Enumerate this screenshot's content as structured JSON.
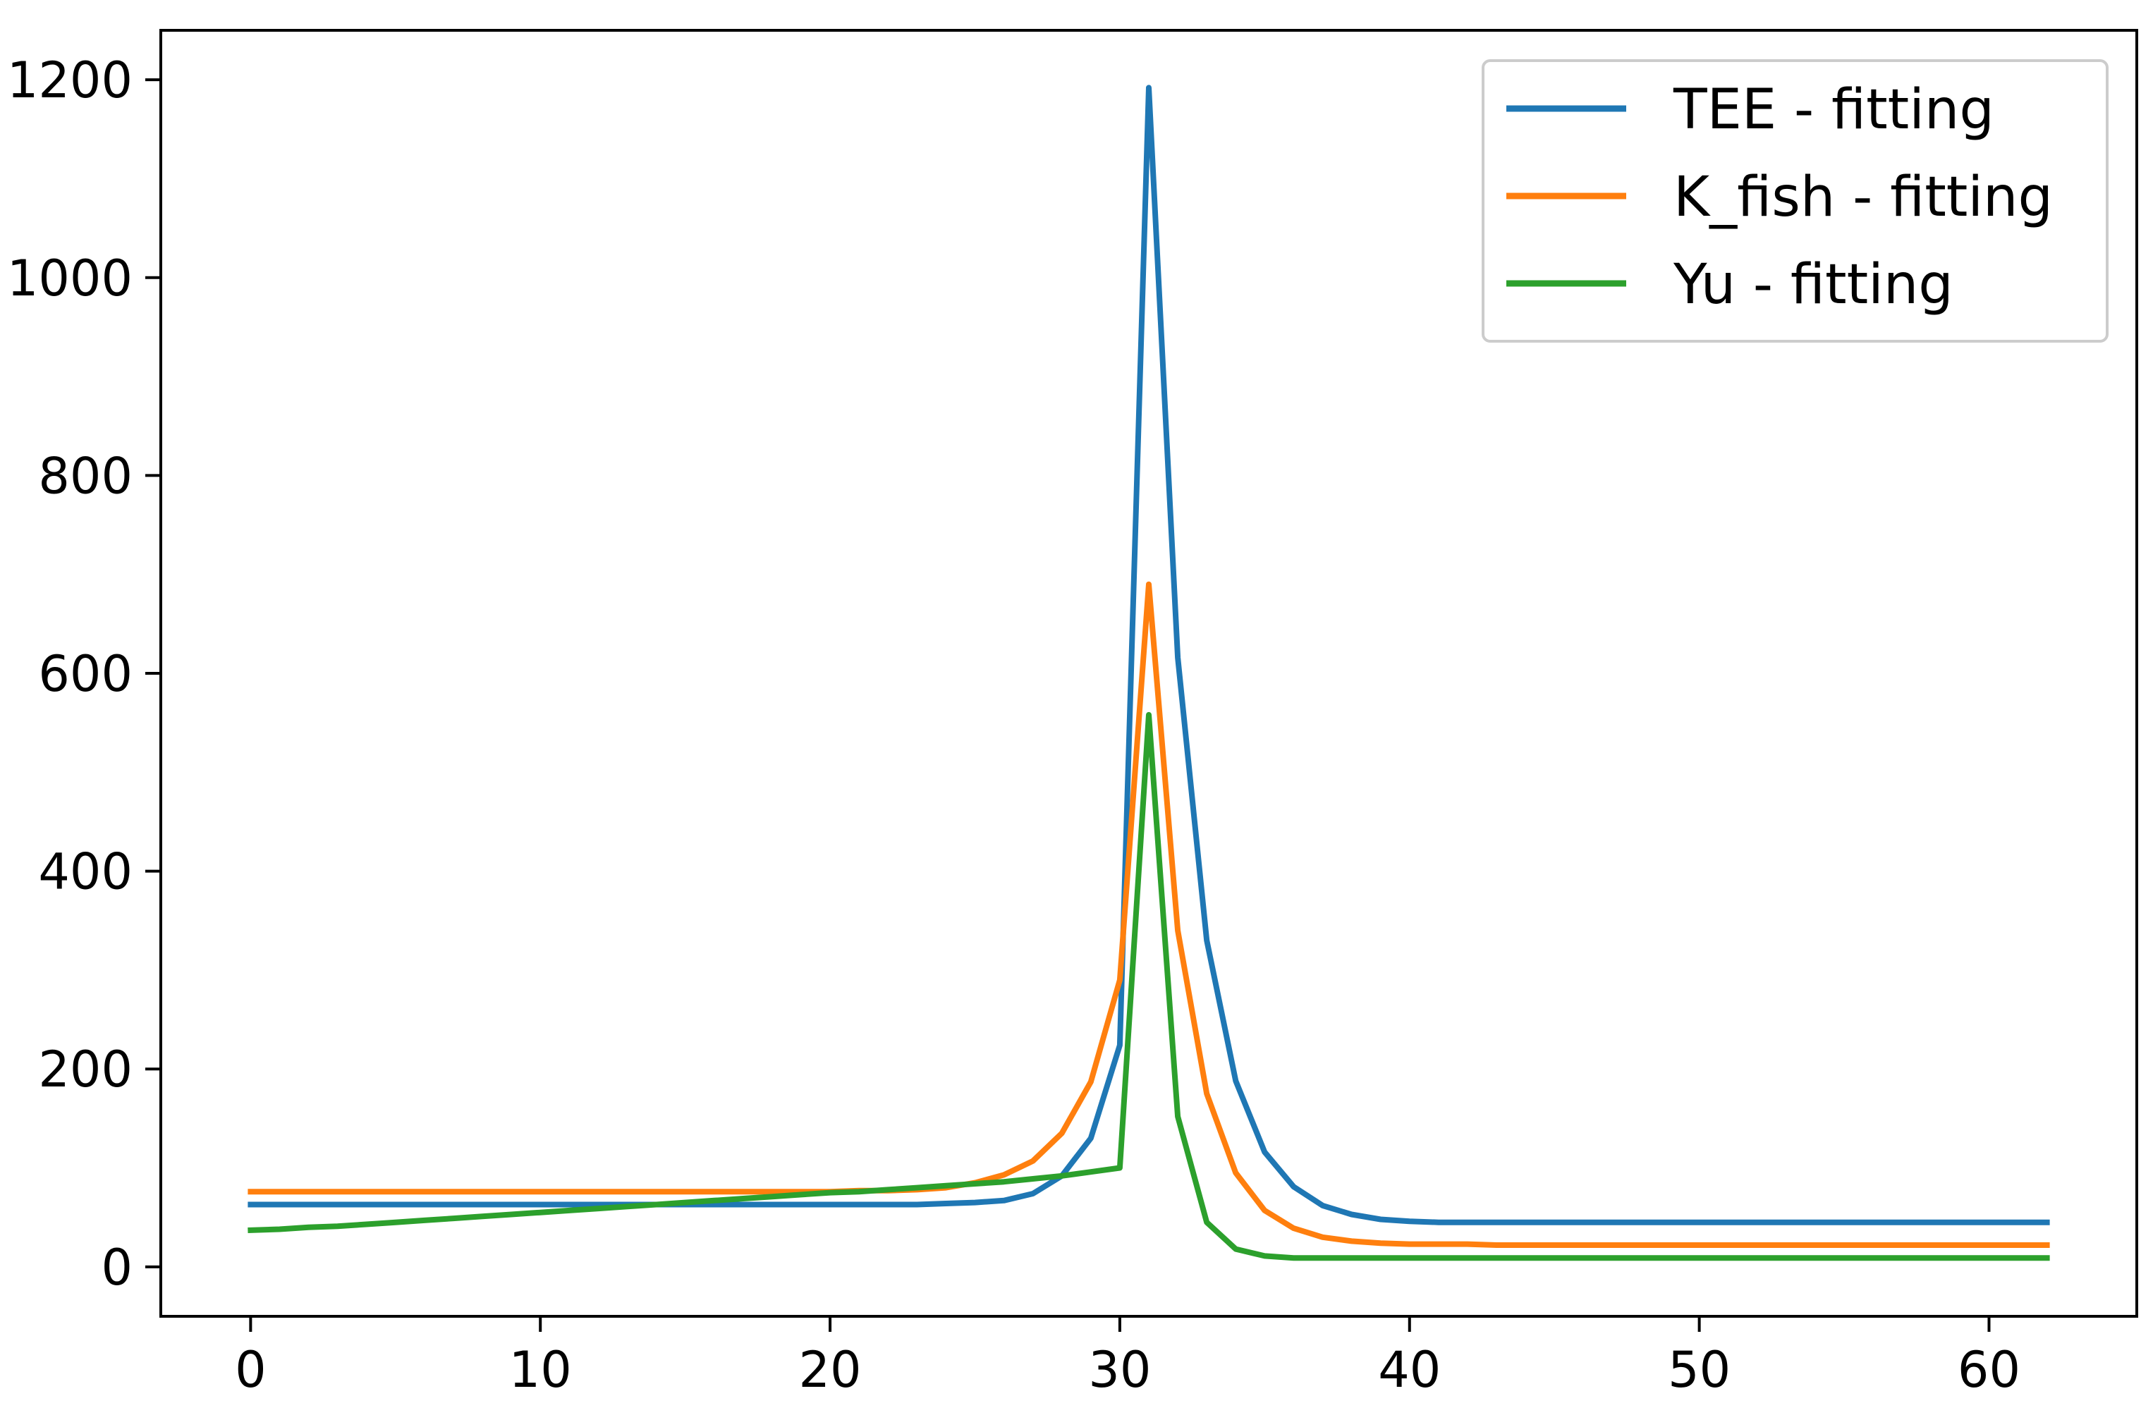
{
  "chart_data": {
    "type": "line",
    "title": "",
    "xlabel": "",
    "ylabel": "",
    "xlim": [
      -3.1,
      65.1
    ],
    "ylim": [
      -50,
      1250
    ],
    "x_ticks": [
      0,
      10,
      20,
      30,
      40,
      50,
      60
    ],
    "x_tick_labels": [
      "0",
      "10",
      "20",
      "30",
      "40",
      "50",
      "60"
    ],
    "y_ticks": [
      0,
      200,
      400,
      600,
      800,
      1000,
      1200
    ],
    "y_tick_labels": [
      "0",
      "200",
      "400",
      "600",
      "800",
      "1000",
      "1200"
    ],
    "grid": false,
    "legend_position": "top-right",
    "x": [
      0,
      1,
      2,
      3,
      4,
      5,
      6,
      7,
      8,
      9,
      10,
      11,
      12,
      13,
      14,
      15,
      16,
      17,
      18,
      19,
      20,
      21,
      22,
      23,
      24,
      25,
      26,
      27,
      28,
      29,
      30,
      31,
      32,
      33,
      34,
      35,
      36,
      37,
      38,
      39,
      40,
      41,
      42,
      43,
      44,
      45,
      46,
      47,
      48,
      49,
      50,
      51,
      52,
      53,
      54,
      55,
      56,
      57,
      58,
      59,
      60,
      61,
      62
    ],
    "series": [
      {
        "name": "TEE - fitting",
        "color": "#1f77b4",
        "values": [
          63,
          63,
          63,
          63,
          63,
          63,
          63,
          63,
          63,
          63,
          63,
          63,
          63,
          63,
          63,
          63,
          63,
          63,
          63,
          63,
          63,
          63,
          63,
          63,
          64,
          65,
          67,
          74,
          92,
          130,
          224,
          1192,
          616,
          330,
          188,
          116,
          81,
          62,
          53,
          48,
          46,
          45,
          45,
          45,
          45,
          45,
          45,
          45,
          45,
          45,
          45,
          45,
          45,
          45,
          45,
          45,
          45,
          45,
          45,
          45,
          45,
          45,
          45
        ]
      },
      {
        "name": "K_fish - fitting",
        "color": "#ff7f0e",
        "values": [
          76,
          76,
          76,
          76,
          76,
          76,
          76,
          76,
          76,
          76,
          76,
          76,
          76,
          76,
          76,
          76,
          76,
          76,
          76,
          76,
          76,
          77,
          77,
          78,
          80,
          85,
          93,
          107,
          135,
          187,
          290,
          690,
          340,
          175,
          95,
          57,
          39,
          30,
          26,
          24,
          23,
          23,
          23,
          22,
          22,
          22,
          22,
          22,
          22,
          22,
          22,
          22,
          22,
          22,
          22,
          22,
          22,
          22,
          22,
          22,
          22,
          22,
          22
        ]
      },
      {
        "name": "Yu - fitting",
        "color": "#2ca02c",
        "values": [
          37,
          38,
          40,
          41,
          43,
          45,
          47,
          49,
          51,
          53,
          55,
          57,
          59,
          61,
          63,
          65,
          67,
          69,
          71,
          73,
          75,
          76,
          78,
          80,
          82,
          84,
          86,
          89,
          92,
          96,
          100,
          558,
          152,
          45,
          18,
          11,
          9,
          9,
          9,
          9,
          9,
          9,
          9,
          9,
          9,
          9,
          9,
          9,
          9,
          9,
          9,
          9,
          9,
          9,
          9,
          9,
          9,
          9,
          9,
          9,
          9,
          9,
          9
        ]
      }
    ]
  }
}
